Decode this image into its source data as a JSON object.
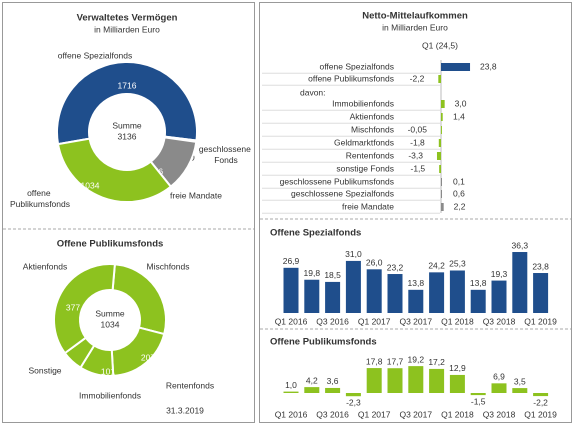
{
  "chart_data": [
    {
      "type": "donut",
      "title": "Verwaltetes Vermögen",
      "subtitle": "in Milliarden Euro",
      "center_label": "Summe",
      "center_value": 3136,
      "categories": [
        "offene Spezialfonds",
        "geschlossene Fonds",
        "freie Mandate",
        "offene Publikumsfonds"
      ],
      "values": [
        1716,
        10,
        376,
        1034
      ],
      "colors": [
        "#1f4e8c",
        "#3a3a3a",
        "#8a8a8a",
        "#8dc21f"
      ]
    },
    {
      "type": "donut",
      "title": "Offene Publikumsfonds",
      "center_label": "Summe",
      "center_value": 1034,
      "categories": [
        "Mischfonds",
        "Rentenfonds",
        "Immobilienfonds",
        "Sonstige",
        "Aktienfonds"
      ],
      "values": [
        286,
        207,
        101,
        63,
        377
      ],
      "colors": [
        "#8dc21f",
        "#8dc21f",
        "#8dc21f",
        "#8dc21f",
        "#8dc21f"
      ],
      "note": "31.3.2019"
    },
    {
      "type": "barh",
      "title": "Netto-Mittelaufkommen",
      "subtitle": "in Milliarden Euro",
      "column_header": "Q1 (24,5)",
      "categories": [
        "offene Spezialfonds",
        "offene Publikumsfonds",
        "davon:",
        "Immobilienfonds",
        "Aktienfonds",
        "Mischfonds",
        "Geldmarktfonds",
        "Rentenfonds",
        "sonstige Fonds",
        "geschlossene Publikumsfonds",
        "geschlossene Spezialfonds",
        "freie Mandate"
      ],
      "values": [
        23.8,
        -2.2,
        null,
        3.0,
        1.4,
        -0.05,
        -1.8,
        -3.3,
        -1.5,
        0.1,
        0.6,
        2.2
      ],
      "value_labels": [
        "23,8",
        "-2,2",
        null,
        "3,0",
        "1,4",
        "-0,05",
        "-1,8",
        "-3,3",
        "-1,5",
        "0,1",
        "0,6",
        "2,2"
      ],
      "colors": [
        "#1f4e8c",
        "#8dc21f",
        null,
        "#8dc21f",
        "#8dc21f",
        "#8dc21f",
        "#8dc21f",
        "#8dc21f",
        "#8dc21f",
        "#8a8a8a",
        "#8a8a8a",
        "#8a8a8a"
      ]
    },
    {
      "type": "bar",
      "title": "Offene Spezialfonds",
      "color": "#1f4e8c",
      "categories": [
        "Q1 2016",
        null,
        "Q3 2016",
        null,
        "Q1 2017",
        null,
        "Q3 2017",
        null,
        "Q1 2018",
        null,
        "Q3 2018",
        null,
        "Q1 2019"
      ],
      "values": [
        26.9,
        19.8,
        18.5,
        31.0,
        26.0,
        23.2,
        13.8,
        24.2,
        25.3,
        13.8,
        19.3,
        36.3,
        23.8
      ],
      "value_labels": [
        "26,9",
        "19,8",
        "18,5",
        "31,0",
        "26,0",
        "23,2",
        "13,8",
        "24,2",
        "25,3",
        "13,8",
        "19,3",
        "36,3",
        "23,8"
      ]
    },
    {
      "type": "bar",
      "title": "Offene Publikumsfonds",
      "color": "#8dc21f",
      "categories": [
        "Q1 2016",
        null,
        "Q3 2016",
        null,
        "Q1 2017",
        null,
        "Q3 2017",
        null,
        "Q1 2018",
        null,
        "Q3 2018",
        null,
        "Q1 2019"
      ],
      "values": [
        1.0,
        4.2,
        3.6,
        -2.3,
        17.8,
        17.7,
        19.2,
        17.2,
        12.9,
        -1.5,
        6.9,
        3.5,
        -2.2
      ],
      "value_labels": [
        "1,0",
        "4,2",
        "3,6",
        "-2,3",
        "17,8",
        "17,7",
        "19,2",
        "17,2",
        "12,9",
        "-1,5",
        "6,9",
        "3,5",
        "-2,2"
      ]
    }
  ]
}
